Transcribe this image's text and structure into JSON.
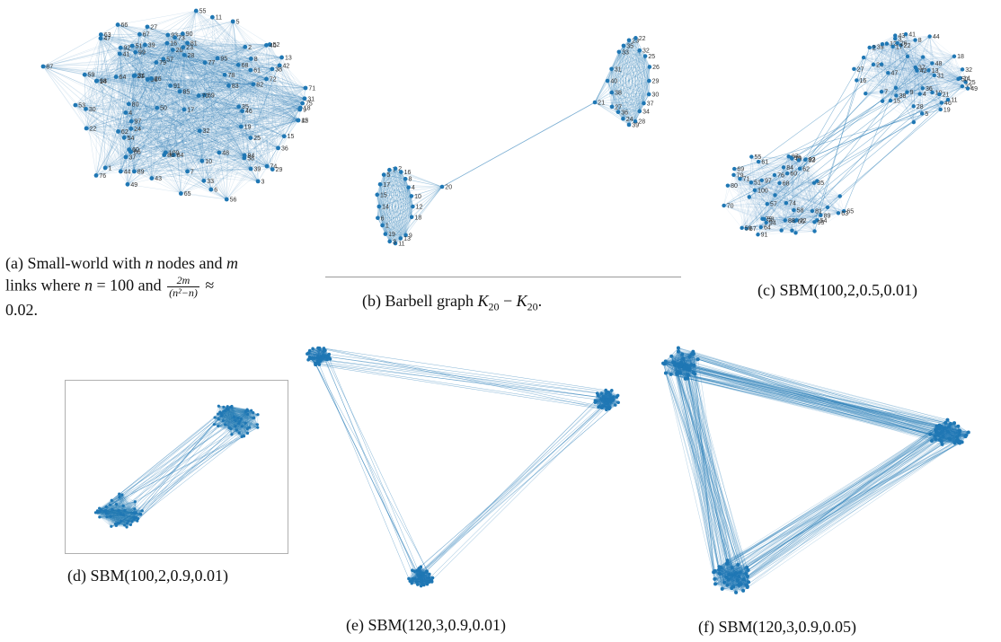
{
  "colors": {
    "edge": "#1f77b4",
    "node": "#1f77b4",
    "label": "#333333"
  },
  "panel_a": {
    "caption_lines": [
      "(a) Small-world with",
      "nodes and",
      "links where",
      "= 100 and",
      "0.02."
    ],
    "caption_math": {
      "n": "n",
      "m": "m",
      "num": "2m",
      "den": "(n²−n)",
      "approx": "≈"
    },
    "node_labels": [
      "18",
      "100",
      "93",
      "49",
      "90",
      "67",
      "77",
      "1",
      "91",
      "39",
      "42",
      "58",
      "38",
      "92",
      "13",
      "60",
      "95",
      "48",
      "62",
      "72",
      "87",
      "19",
      "14",
      "24",
      "69",
      "86",
      "66",
      "80",
      "54",
      "37",
      "89",
      "21",
      "61",
      "2",
      "41",
      "53",
      "82",
      "57",
      "64",
      "71",
      "11",
      "74",
      "25",
      "32",
      "35",
      "96",
      "22",
      "3",
      "45",
      "52",
      "28",
      "46",
      "17",
      "34",
      "73",
      "79",
      "78",
      "76",
      "94",
      "9",
      "63",
      "12",
      "56",
      "59",
      "84",
      "33",
      "15",
      "27",
      "50",
      "29",
      "39",
      "70",
      "40",
      "75",
      "81",
      "65",
      "68",
      "7",
      "8",
      "44",
      "20",
      "16",
      "10",
      "31",
      "47",
      "83",
      "26",
      "30",
      "55",
      "4",
      "97",
      "51",
      "98",
      "23",
      "85",
      "43",
      "6",
      "88",
      "99",
      "36",
      "5"
    ]
  },
  "panel_b": {
    "caption": "(b) Barbell graph",
    "caption_math": "K",
    "caption_sub": "20",
    "caption_minus": "−",
    "node_labels_top": [
      "29",
      "30",
      "37",
      "34",
      "28",
      "39",
      "24",
      "36",
      "27",
      "38",
      "40",
      "31",
      "21",
      "33",
      "35",
      "23",
      "22",
      "32",
      "25",
      "26"
    ],
    "node_labels_bottom": [
      "12",
      "18",
      "20",
      "9",
      "13",
      "11",
      "3",
      "19",
      "1",
      "6",
      "14",
      "15",
      "17",
      "5",
      "7",
      "2",
      "16",
      "8",
      "4",
      "10"
    ]
  },
  "panel_c": {
    "caption": "(c) SBM(100,2,0.5,0.01)",
    "node_labels_top": [
      "22",
      "16",
      "9",
      "14",
      "10",
      "38",
      "46",
      "12",
      "25",
      "18",
      "43",
      "36",
      "28",
      "11",
      "37",
      "8",
      "31",
      "50",
      "19",
      "21",
      "39",
      "3",
      "13",
      "27",
      "44",
      "4",
      "15",
      "41",
      "47",
      "5",
      "26",
      "33",
      "24",
      "2",
      "17",
      "32",
      "49",
      "7",
      "42",
      "48"
    ],
    "node_labels_bottom": [
      "72",
      "67",
      "92",
      "80",
      "85",
      "65",
      "68",
      "59",
      "60",
      "66",
      "51",
      "93",
      "62",
      "71",
      "74",
      "54",
      "97",
      "81",
      "96",
      "63",
      "95",
      "69",
      "58",
      "76",
      "100",
      "75",
      "53",
      "61",
      "89",
      "57",
      "87",
      "88",
      "64",
      "79",
      "91",
      "55",
      "78",
      "94",
      "84",
      "70"
    ]
  },
  "panel_d": {
    "caption": "(d) SBM(100,2,0.9,0.01)"
  },
  "panel_e": {
    "caption": "(e) SBM(120,3,0.9,0.01)"
  },
  "panel_f": {
    "caption": "(f) SBM(120,3,0.9,0.05)"
  }
}
